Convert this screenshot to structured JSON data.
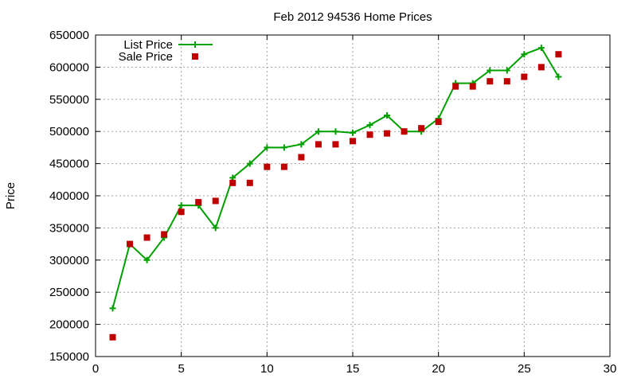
{
  "chart_data": {
    "type": "line",
    "title": "Feb 2012 94536 Home Prices",
    "xlabel": "",
    "ylabel": "Price",
    "xlim": [
      0,
      30
    ],
    "ylim": [
      150000,
      650000
    ],
    "xticks": [
      0,
      5,
      10,
      15,
      20,
      25,
      30
    ],
    "yticks": [
      150000,
      200000,
      250000,
      300000,
      350000,
      400000,
      450000,
      500000,
      550000,
      600000,
      650000
    ],
    "grid": true,
    "legend_position": "top-left",
    "series": [
      {
        "name": "List Price",
        "style": "line-with-plus-markers",
        "color": "#00a000",
        "x": [
          1,
          2,
          3,
          4,
          5,
          6,
          7,
          8,
          9,
          10,
          11,
          12,
          13,
          14,
          15,
          16,
          17,
          18,
          19,
          20,
          21,
          22,
          23,
          24,
          25,
          26,
          27
        ],
        "y": [
          225000,
          325000,
          300000,
          335000,
          385000,
          385000,
          350000,
          428000,
          450000,
          475000,
          475000,
          480000,
          500000,
          500000,
          498000,
          510000,
          525000,
          500000,
          500000,
          520000,
          575000,
          575000,
          595000,
          595000,
          620000,
          630000,
          585000
        ]
      },
      {
        "name": "Sale Price",
        "style": "square-markers",
        "color": "#c00000",
        "x": [
          1,
          2,
          3,
          4,
          5,
          6,
          7,
          8,
          9,
          10,
          11,
          12,
          13,
          14,
          15,
          16,
          17,
          18,
          19,
          20,
          21,
          22,
          23,
          24,
          25,
          26,
          27
        ],
        "y": [
          180000,
          325000,
          335000,
          340000,
          375000,
          390000,
          392000,
          420000,
          420000,
          445000,
          445000,
          460000,
          480000,
          480000,
          485000,
          495000,
          497000,
          500000,
          505000,
          515000,
          570000,
          570000,
          578000,
          578000,
          585000,
          600000,
          620000
        ]
      }
    ]
  }
}
